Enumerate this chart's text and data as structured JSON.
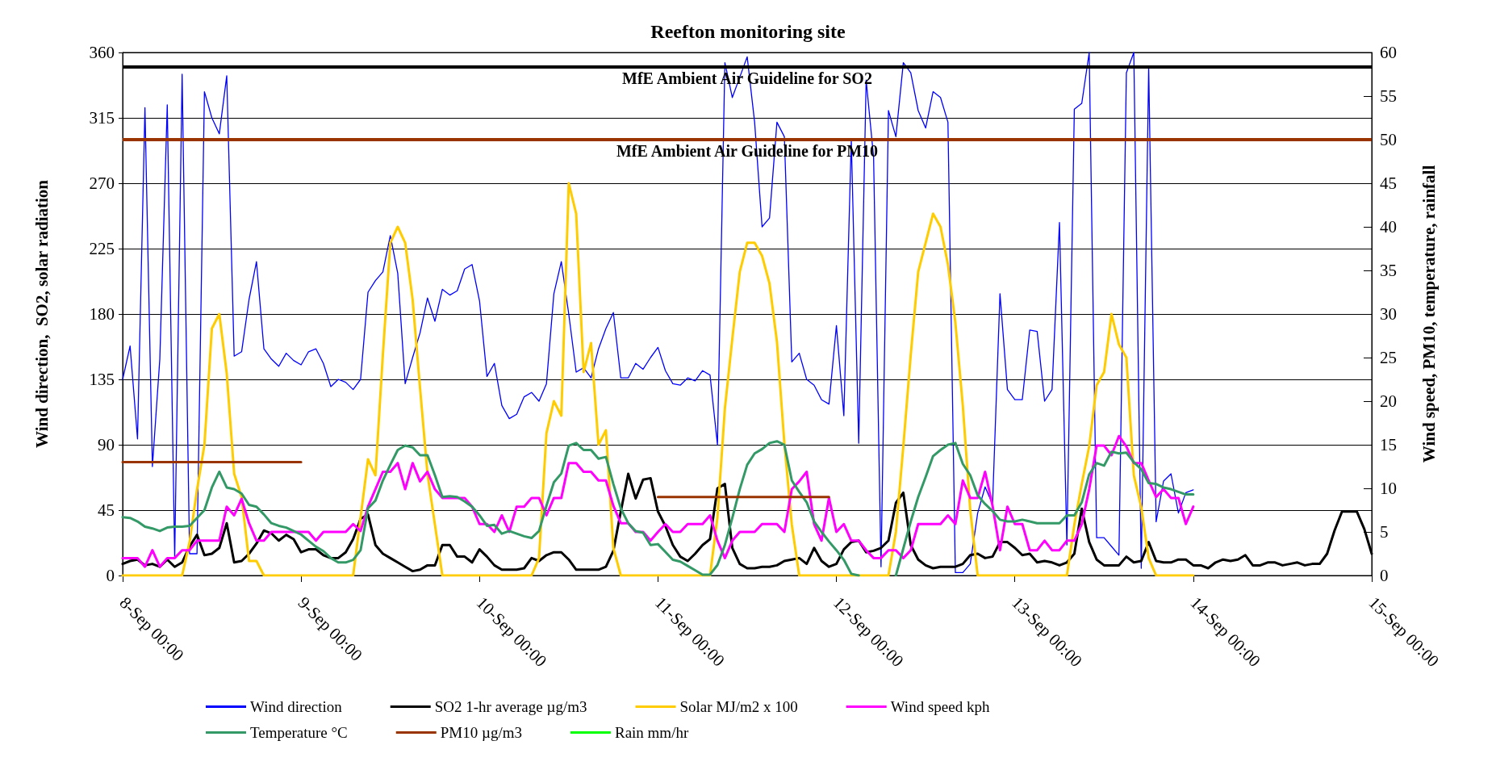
{
  "chart_data": {
    "type": "line",
    "title": "Reefton monitoring site",
    "ylabel": "Wind direction,  SO2, solar radiation",
    "y2label": "Wind speed, PM10, temperature, rainfall",
    "categories": [
      "8-Sep 00:00",
      null,
      null,
      null,
      null,
      null,
      null,
      null,
      null,
      null,
      null,
      null,
      null,
      null,
      null,
      null,
      null,
      null,
      null,
      null,
      null,
      null,
      null,
      null,
      "9-Sep 00:00",
      null,
      null,
      null,
      null,
      null,
      null,
      null,
      null,
      null,
      null,
      null,
      null,
      null,
      null,
      null,
      null,
      null,
      null,
      null,
      null,
      null,
      null,
      null,
      "10-Sep 00:00",
      null,
      null,
      null,
      null,
      null,
      null,
      null,
      null,
      null,
      null,
      null,
      null,
      null,
      null,
      null,
      null,
      null,
      null,
      null,
      null,
      null,
      null,
      null,
      "11-Sep 00:00",
      null,
      null,
      null,
      null,
      null,
      null,
      null,
      null,
      null,
      null,
      null,
      null,
      null,
      null,
      null,
      null,
      null,
      null,
      null,
      null,
      null,
      null,
      null,
      "12-Sep 00:00",
      null,
      null,
      null,
      null,
      null,
      null,
      null,
      null,
      null,
      null,
      null,
      null,
      null,
      null,
      null,
      null,
      null,
      null,
      null,
      null,
      null,
      null,
      null,
      "13-Sep 00:00",
      null,
      null,
      null,
      null,
      null,
      null,
      null,
      null,
      null,
      null,
      null,
      null,
      null,
      null,
      null,
      null,
      null,
      null,
      null,
      null,
      null,
      null,
      null,
      "14-Sep 00:00",
      null,
      null,
      null,
      null,
      null,
      null,
      null,
      null,
      null,
      null,
      null,
      null,
      null,
      null,
      null,
      null,
      null,
      null,
      null,
      null,
      null,
      null,
      null,
      "15-Sep 00:00"
    ],
    "ylim": [
      0,
      360
    ],
    "yticks": [
      0,
      45,
      90,
      135,
      180,
      225,
      270,
      315,
      360
    ],
    "y2lim": [
      0,
      60
    ],
    "y2ticks": [
      0,
      5,
      10,
      15,
      20,
      25,
      30,
      35,
      40,
      45,
      50,
      55,
      60
    ],
    "grid": "y",
    "legend": "bottom",
    "marker": "none",
    "line_style": "solid",
    "series": [
      {
        "name": "Wind direction",
        "color": "#0000ff",
        "values": [
          135,
          158,
          94,
          322,
          75,
          149,
          324,
          12,
          345,
          15,
          15,
          333,
          315,
          304,
          344,
          151,
          154,
          190,
          216,
          156,
          149,
          144,
          153,
          148,
          145,
          154,
          156,
          146,
          130,
          135,
          133,
          128,
          135,
          195,
          203,
          209,
          234,
          208,
          132,
          150,
          167,
          191,
          175,
          197,
          193,
          196,
          211,
          214,
          189,
          137,
          146,
          117,
          108,
          111,
          123,
          126,
          120,
          132,
          194,
          216,
          180,
          140,
          143,
          136,
          156,
          170,
          181,
          136,
          136,
          146,
          142,
          150,
          157,
          141,
          132,
          131,
          136,
          134,
          141,
          138,
          90,
          353,
          329,
          343,
          357,
          312,
          240,
          246,
          312,
          302,
          147,
          153,
          135,
          131,
          121,
          118,
          172,
          110,
          300,
          91,
          341,
          288,
          6,
          320,
          302,
          353,
          346,
          320,
          308,
          333,
          329,
          312,
          2,
          2,
          8,
          43,
          61,
          49,
          194,
          128,
          121,
          121,
          169,
          168,
          120,
          128,
          243,
          21,
          321,
          325,
          360,
          26,
          26,
          20,
          14,
          346,
          360,
          5,
          350,
          37,
          65,
          70,
          43,
          57,
          59,
          null,
          null,
          null,
          null,
          null,
          null,
          null,
          null,
          null,
          null,
          null,
          null,
          null,
          null,
          null,
          null,
          null,
          null,
          null,
          null,
          null,
          null,
          null,
          null
        ]
      },
      {
        "name": "SO2 1-hr average µg/m3",
        "color": "#000000",
        "values": [
          8,
          10,
          11,
          7,
          8,
          6,
          11,
          6,
          9,
          20,
          28,
          14,
          15,
          19,
          36,
          9,
          10,
          15,
          22,
          31,
          29,
          24,
          28,
          25,
          16,
          18,
          18,
          14,
          12,
          12,
          16,
          25,
          39,
          42,
          21,
          15,
          12,
          9,
          6,
          3,
          4,
          7,
          7,
          21,
          21,
          13,
          13,
          9,
          18,
          13,
          7,
          4,
          4,
          4,
          5,
          12,
          10,
          14,
          16,
          16,
          11,
          4,
          4,
          4,
          4,
          6,
          17,
          44,
          70,
          53,
          66,
          67,
          44,
          34,
          21,
          13,
          10,
          15,
          21,
          25,
          60,
          63,
          19,
          8,
          5,
          5,
          6,
          6,
          7,
          10,
          11,
          12,
          8,
          19,
          10,
          6,
          8,
          18,
          23,
          24,
          16,
          17,
          19,
          24,
          50,
          57,
          21,
          11,
          7,
          5,
          6,
          6,
          6,
          8,
          14,
          15,
          12,
          13,
          23,
          23,
          19,
          14,
          15,
          9,
          10,
          9,
          7,
          9,
          15,
          46,
          23,
          11,
          7,
          7,
          7,
          13,
          9,
          10,
          23,
          10,
          9,
          9,
          11,
          11,
          7,
          7,
          5,
          9,
          11,
          10,
          11,
          14,
          7,
          7,
          9,
          9,
          7,
          8,
          9,
          7,
          8,
          8,
          15,
          31,
          44,
          44,
          44,
          32,
          15
        ]
      },
      {
        "name": "Solar MJ/m2 x 100",
        "color": "#ffcc00",
        "values": [
          0,
          0,
          0,
          0,
          0,
          0,
          0,
          0,
          0,
          23,
          59,
          90,
          170,
          180,
          139,
          70,
          54,
          10,
          10,
          0,
          0,
          0,
          0,
          0,
          0,
          0,
          0,
          0,
          0,
          0,
          0,
          0,
          40,
          80,
          69,
          152,
          229,
          240,
          229,
          190,
          129,
          70,
          35,
          0,
          0,
          0,
          0,
          0,
          0,
          0,
          0,
          0,
          0,
          0,
          0,
          0,
          12,
          98,
          120,
          110,
          270,
          249,
          140,
          160,
          90,
          100,
          19,
          0,
          0,
          0,
          0,
          0,
          0,
          0,
          0,
          0,
          0,
          0,
          0,
          0,
          40,
          115,
          163,
          209,
          229,
          229,
          220,
          201,
          161,
          91,
          35,
          0,
          0,
          0,
          0,
          0,
          0,
          0,
          0,
          0,
          0,
          0,
          0,
          0,
          30,
          89,
          152,
          209,
          229,
          249,
          240,
          214,
          174,
          117,
          45,
          0,
          0,
          0,
          0,
          0,
          0,
          0,
          0,
          0,
          0,
          0,
          0,
          0,
          35,
          63,
          89,
          131,
          140,
          180,
          159,
          150,
          69,
          47,
          12,
          0,
          0,
          0,
          0,
          0,
          0,
          null,
          null,
          null,
          null,
          null,
          null,
          null,
          null,
          null,
          null,
          null,
          null,
          null,
          null,
          null,
          null,
          null,
          null,
          null,
          null,
          null,
          null,
          null,
          null
        ]
      },
      {
        "name": "Wind speed kph",
        "color": "#ff00ff",
        "axis": "y2",
        "values": [
          2.0,
          2.0,
          2.0,
          1.0,
          2.9,
          1.0,
          2.0,
          2.0,
          2.9,
          2.9,
          4.0,
          4.0,
          4.0,
          4.0,
          7.9,
          6.9,
          8.8,
          6.0,
          4.0,
          4.0,
          5.0,
          5.0,
          5.0,
          5.0,
          5.0,
          5.0,
          4.0,
          5.0,
          5.0,
          5.0,
          5.0,
          5.9,
          5.1,
          7.9,
          9.9,
          11.9,
          11.9,
          12.9,
          9.9,
          12.9,
          10.8,
          11.9,
          9.9,
          8.9,
          8.9,
          8.9,
          8.9,
          7.9,
          5.9,
          5.9,
          5.0,
          6.9,
          5.0,
          7.9,
          7.9,
          8.9,
          8.9,
          6.9,
          8.9,
          8.9,
          12.9,
          12.9,
          11.9,
          11.9,
          10.9,
          10.9,
          8.0,
          6.0,
          6.0,
          5.0,
          5.0,
          4.0,
          5.0,
          5.9,
          5.0,
          5.0,
          5.9,
          5.9,
          5.9,
          6.9,
          4.0,
          2.0,
          4.0,
          5.0,
          5.0,
          5.0,
          5.9,
          5.9,
          5.9,
          5.0,
          9.9,
          10.8,
          11.9,
          5.9,
          4.0,
          8.9,
          5.0,
          5.9,
          4.0,
          4.0,
          2.9,
          2.0,
          2.0,
          2.9,
          2.9,
          2.0,
          2.9,
          5.9,
          5.9,
          5.9,
          5.9,
          6.9,
          5.9,
          10.9,
          8.9,
          8.9,
          11.9,
          8.0,
          2.9,
          7.9,
          5.9,
          5.9,
          2.9,
          2.9,
          4.0,
          2.9,
          2.9,
          4.0,
          4.0,
          5.9,
          9.9,
          14.9,
          14.9,
          13.8,
          16.0,
          14.8,
          12.9,
          12.9,
          10.9,
          9.0,
          9.9,
          8.9,
          8.9,
          5.9,
          7.9,
          null,
          null,
          null,
          null,
          null,
          null,
          null,
          null,
          null,
          null,
          null,
          null,
          null,
          null,
          null,
          null,
          null,
          null,
          null,
          null,
          null,
          null,
          null,
          null
        ]
      },
      {
        "name": "Temperature °C",
        "color": "#339966",
        "axis": "y2",
        "values": [
          6.7,
          6.6,
          6.2,
          5.6,
          5.4,
          5.1,
          5.5,
          5.6,
          5.6,
          5.7,
          6.6,
          7.5,
          10.1,
          11.9,
          10.1,
          9.9,
          9.4,
          8.1,
          7.9,
          7.0,
          6.0,
          5.7,
          5.5,
          5.1,
          4.7,
          4.0,
          3.3,
          2.8,
          2.0,
          1.5,
          1.5,
          1.8,
          2.9,
          7.7,
          8.6,
          10.9,
          12.7,
          14.4,
          14.9,
          14.7,
          13.8,
          13.8,
          11.5,
          9.0,
          9.1,
          9.0,
          8.5,
          7.9,
          6.9,
          5.7,
          5.8,
          4.8,
          5.1,
          4.8,
          4.5,
          4.3,
          5.1,
          8.0,
          10.7,
          11.7,
          14.9,
          15.2,
          14.4,
          14.4,
          13.4,
          13.6,
          10.5,
          7.7,
          6.0,
          5.1,
          4.9,
          3.5,
          3.6,
          2.7,
          1.8,
          1.6,
          1.1,
          0.6,
          0.1,
          0.1,
          1.2,
          3.5,
          6.6,
          9.9,
          12.7,
          14.0,
          14.5,
          15.2,
          15.4,
          15.0,
          10.9,
          9.6,
          8.4,
          6.2,
          5.0,
          3.9,
          2.9,
          1.8,
          0.2,
          0,
          null,
          null,
          null,
          null,
          0,
          3.1,
          6.2,
          9.0,
          11.3,
          13.7,
          14.4,
          15.0,
          15.2,
          12.8,
          11.5,
          9.2,
          8.2,
          7.4,
          6.4,
          6.2,
          6.2,
          6.4,
          6.2,
          6.0,
          6.0,
          6.0,
          6.0,
          6.9,
          6.9,
          8.4,
          11.6,
          12.9,
          12.6,
          14.2,
          14.0,
          14.1,
          13.0,
          12.2,
          10.6,
          10.5,
          10.1,
          9.9,
          9.6,
          9.3,
          9.3,
          null,
          null,
          null,
          null,
          null,
          null,
          null,
          null,
          null,
          null,
          null,
          null,
          null,
          null,
          null,
          null,
          null,
          null,
          null,
          null,
          null,
          null,
          null,
          null
        ]
      },
      {
        "name": "PM10 µg/m3",
        "color": "#993300",
        "axis": "y2",
        "values": [
          13,
          13,
          13,
          13,
          13,
          13,
          13,
          13,
          13,
          13,
          13,
          13,
          13,
          13,
          13,
          13,
          13,
          13,
          13,
          13,
          13,
          13,
          13,
          13,
          13,
          null,
          null,
          null,
          null,
          null,
          null,
          null,
          null,
          null,
          null,
          null,
          null,
          null,
          null,
          null,
          null,
          null,
          null,
          null,
          null,
          null,
          null,
          null,
          null,
          null,
          null,
          null,
          null,
          null,
          null,
          null,
          null,
          null,
          null,
          null,
          null,
          null,
          null,
          null,
          null,
          null,
          null,
          null,
          null,
          null,
          null,
          null,
          9,
          9,
          9,
          9,
          9,
          9,
          9,
          9,
          9,
          9,
          9,
          9,
          9,
          9,
          9,
          9,
          9,
          9,
          9,
          9,
          9,
          9,
          9,
          9,
          null,
          null,
          null,
          null,
          null,
          null,
          null,
          null,
          null,
          null,
          null,
          null,
          null,
          null,
          null,
          null,
          null,
          null,
          null,
          null,
          null,
          null,
          null,
          null,
          null,
          null,
          null,
          null,
          null,
          null,
          null,
          null,
          null,
          null,
          null,
          null,
          null,
          null,
          null,
          null,
          null,
          null,
          null,
          null,
          null,
          null,
          null,
          null,
          null,
          null,
          null,
          null,
          null,
          null,
          null,
          null,
          null,
          null,
          null,
          null,
          null,
          null,
          null,
          null,
          null,
          null,
          null,
          null,
          null,
          null,
          null,
          null,
          null
        ]
      },
      {
        "name": "Rain mm/hr",
        "color": "#00ff00",
        "axis": "y2",
        "values": [
          null,
          null,
          null,
          null,
          null,
          null,
          null,
          null,
          null,
          null,
          null,
          null,
          null,
          null,
          null,
          null,
          null,
          null,
          null,
          null,
          null,
          null,
          null,
          null,
          null,
          null,
          null,
          null,
          null,
          null,
          null,
          null,
          null,
          null,
          null,
          null,
          null,
          null,
          null,
          null,
          null,
          null,
          null,
          null,
          null,
          null,
          null,
          null,
          null,
          null,
          null,
          null,
          null,
          null,
          null,
          null,
          null,
          null,
          null,
          null,
          null,
          null,
          null,
          null,
          null,
          null,
          null,
          null,
          null,
          null,
          null,
          null,
          null,
          null,
          null,
          null,
          null,
          null,
          null,
          null,
          null,
          null,
          null,
          null,
          null,
          null,
          null,
          null,
          null,
          null,
          null,
          null,
          null,
          null,
          null,
          null,
          null,
          null,
          null,
          null,
          null,
          null,
          null,
          null,
          null,
          null,
          null,
          null,
          null,
          null,
          null,
          null,
          null,
          null,
          null,
          null,
          null,
          null,
          null,
          null,
          null,
          null,
          null,
          null,
          null,
          null,
          null,
          null,
          null,
          null,
          null,
          null,
          null,
          null,
          null,
          null,
          null,
          null,
          null,
          null,
          null,
          null,
          null,
          null,
          null,
          null,
          null,
          null,
          null,
          null,
          null,
          null,
          null,
          null,
          null,
          null,
          null,
          null,
          null,
          null,
          null,
          null,
          null,
          null,
          null,
          null,
          null,
          null,
          null
        ]
      }
    ],
    "ref_lines": [
      {
        "axis": "y",
        "value": 350,
        "label": "MfE Ambient Air Guideline for SO2",
        "color": "#000000"
      },
      {
        "axis": "y2",
        "value": 50,
        "label": "MfE Ambient Air Guideline for PM10",
        "color": "#993300"
      }
    ]
  }
}
